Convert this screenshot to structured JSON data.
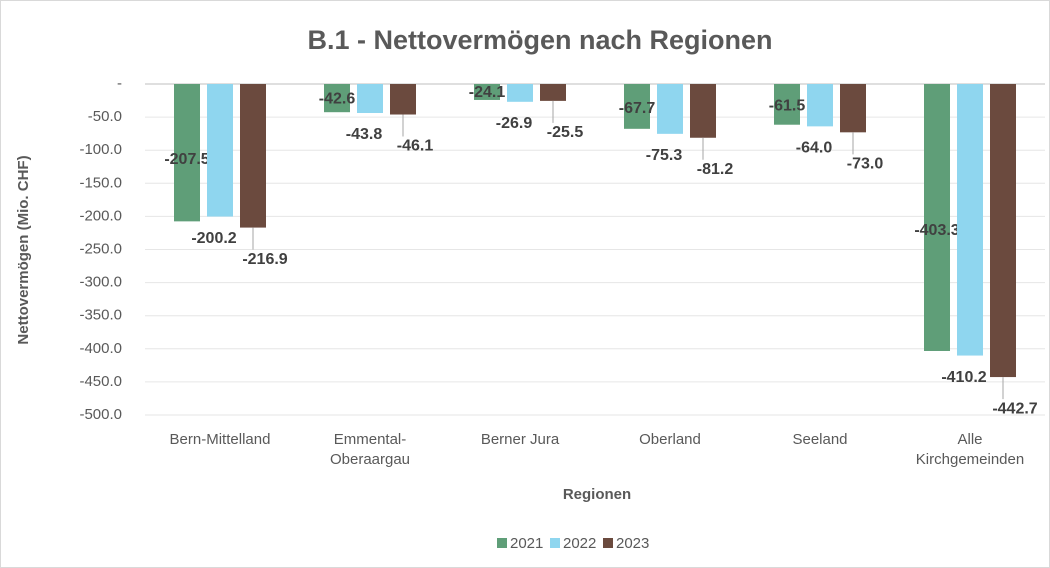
{
  "chart_data": {
    "type": "bar",
    "title": "B.1 - Nettovermögen nach Regionen",
    "y_label": "Nettovermögen (Mio. CHF)",
    "x_label": "Regionen",
    "categories": [
      [
        "Bern-Mittelland"
      ],
      [
        "Emmental-",
        "Oberaargau"
      ],
      [
        "Berner Jura"
      ],
      [
        "Oberland"
      ],
      [
        "Seeland"
      ],
      [
        "Alle",
        "Kirchgemeinden"
      ]
    ],
    "series": [
      {
        "name": "2021",
        "color": "#5f9e78",
        "values": [
          -207.5,
          -42.6,
          -24.1,
          -67.7,
          -61.5,
          -403.3
        ],
        "value_labels": [
          "-207.5",
          "-42.6",
          "-24.1",
          "-67.7",
          "-61.5",
          "-403.3"
        ]
      },
      {
        "name": "2022",
        "color": "#8fd6ef",
        "values": [
          -200.2,
          -43.8,
          -26.9,
          -75.3,
          -64.0,
          -410.2
        ],
        "value_labels": [
          "-200.2",
          "-43.8",
          "-26.9",
          "-75.3",
          "-64.0",
          "-410.2"
        ]
      },
      {
        "name": "2023",
        "color": "#6b4a3e",
        "values": [
          -216.9,
          -46.1,
          -25.5,
          -81.2,
          -73.0,
          -442.7
        ],
        "value_labels": [
          "-216.9",
          "-46.1",
          "-25.5",
          "-81.2",
          "-73.0",
          "-442.7"
        ]
      }
    ],
    "ylim": [
      -500,
      0
    ],
    "yticks": [
      {
        "value": 0,
        "label": "-"
      },
      {
        "value": -50,
        "label": "-50.0"
      },
      {
        "value": -100,
        "label": "-100.0"
      },
      {
        "value": -150,
        "label": "-150.0"
      },
      {
        "value": -200,
        "label": "-200.0"
      },
      {
        "value": -250,
        "label": "-250.0"
      },
      {
        "value": -300,
        "label": "-300.0"
      },
      {
        "value": -350,
        "label": "-350.0"
      },
      {
        "value": -400,
        "label": "-400.0"
      },
      {
        "value": -450,
        "label": "-450.0"
      },
      {
        "value": -500,
        "label": "-500.0"
      }
    ],
    "grid": true,
    "legend": "bottom"
  }
}
